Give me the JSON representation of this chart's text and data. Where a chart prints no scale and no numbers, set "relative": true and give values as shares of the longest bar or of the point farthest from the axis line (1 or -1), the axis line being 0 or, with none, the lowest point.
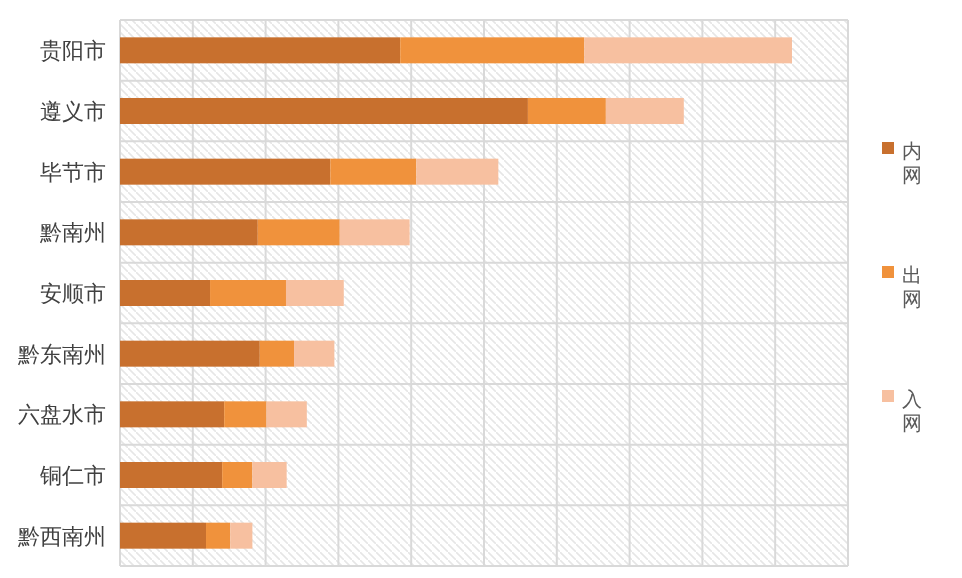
{
  "chart_data": {
    "type": "bar",
    "orientation": "horizontal",
    "stacked": true,
    "relative": true,
    "grid": true,
    "legend": "right",
    "categories": [
      "贵阳市",
      "遵义市",
      "毕节市",
      "黔南州",
      "安顺市",
      "黔东南州",
      "六盘水市",
      "铜仁市",
      "黔西南州"
    ],
    "series": [
      {
        "name": "内网",
        "color": "#c8702e",
        "values": [
          0.417,
          0.607,
          0.313,
          0.205,
          0.134,
          0.208,
          0.155,
          0.152,
          0.128
        ]
      },
      {
        "name": "出网",
        "color": "#f0923c",
        "values": [
          0.274,
          0.116,
          0.128,
          0.122,
          0.113,
          0.051,
          0.063,
          0.045,
          0.036
        ]
      },
      {
        "name": "入网",
        "color": "#f7c0a0",
        "values": [
          0.309,
          0.116,
          0.122,
          0.104,
          0.086,
          0.06,
          0.06,
          0.051,
          0.033
        ]
      }
    ]
  }
}
